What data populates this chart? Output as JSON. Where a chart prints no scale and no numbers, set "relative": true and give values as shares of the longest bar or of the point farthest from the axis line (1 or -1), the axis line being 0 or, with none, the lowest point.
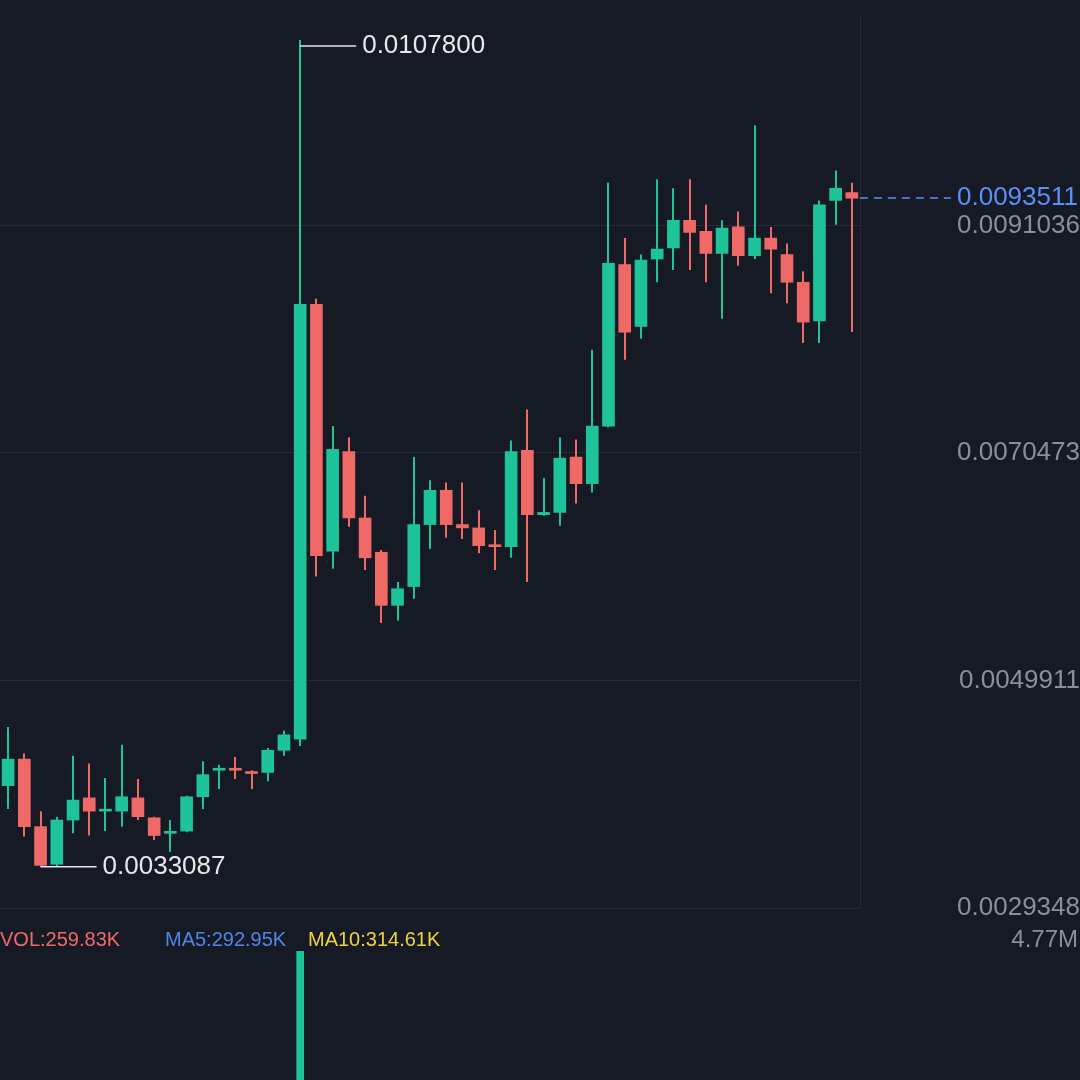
{
  "chart_data": [
    {
      "type": "candlestick",
      "categories": [
        null,
        null,
        null,
        null,
        null,
        null,
        null,
        null,
        null,
        null,
        null,
        null,
        null,
        null,
        null,
        null,
        null,
        null,
        null,
        null,
        null,
        null,
        null,
        null,
        null,
        null,
        null,
        null,
        null,
        null,
        null,
        null,
        null,
        null,
        null,
        null,
        null,
        null,
        null,
        null,
        null,
        null,
        null,
        null,
        null,
        null,
        null,
        null,
        null,
        null,
        null,
        null,
        null
      ],
      "ohlc": [
        [
          0.00404,
          0.00457,
          0.00383,
          0.00428
        ],
        [
          0.00428,
          0.00433,
          0.00358,
          0.00367
        ],
        [
          0.00367,
          0.00381,
          0.0033087,
          0.00332
        ],
        [
          0.00333,
          0.00376,
          0.00331,
          0.00373
        ],
        [
          0.00373,
          0.00431,
          0.00361,
          0.00391
        ],
        [
          0.00393,
          0.00424,
          0.00359,
          0.00381
        ],
        [
          0.00381,
          0.00411,
          0.00363,
          0.00382
        ],
        [
          0.00381,
          0.00441,
          0.00367,
          0.00394
        ],
        [
          0.00393,
          0.0041,
          0.00373,
          0.00376
        ],
        [
          0.00375,
          0.00376,
          0.00355,
          0.00359
        ],
        [
          0.00361,
          0.00373,
          0.00344,
          0.00362
        ],
        [
          0.00363,
          0.00395,
          0.00362,
          0.00394
        ],
        [
          0.00394,
          0.00426,
          0.00383,
          0.00414
        ],
        [
          0.00418,
          0.00423,
          0.00401,
          0.00419
        ],
        [
          0.00419,
          0.0043,
          0.0041,
          0.00418
        ],
        [
          0.00416,
          0.00418,
          0.00401,
          0.00415
        ],
        [
          0.00416,
          0.00438,
          0.00408,
          0.00436
        ],
        [
          0.00436,
          0.00454,
          0.00431,
          0.0045
        ],
        [
          0.00446,
          0.01078,
          0.0044,
          0.00839
        ],
        [
          0.00839,
          0.00844,
          0.00593,
          0.00612
        ],
        [
          0.00616,
          0.00729,
          0.006,
          0.00708
        ],
        [
          0.00706,
          0.00719,
          0.00638,
          0.00646
        ],
        [
          0.00646,
          0.00666,
          0.00599,
          0.0061
        ],
        [
          0.00615,
          0.00617,
          0.00551,
          0.00567
        ],
        [
          0.00567,
          0.00588,
          0.00553,
          0.00582
        ],
        [
          0.00584,
          0.00701,
          0.00573,
          0.0064
        ],
        [
          0.0064,
          0.0068,
          0.00618,
          0.00671
        ],
        [
          0.00671,
          0.00678,
          0.00628,
          0.0064
        ],
        [
          0.0064,
          0.00678,
          0.00627,
          0.00637
        ],
        [
          0.00637,
          0.00653,
          0.00614,
          0.00621
        ],
        [
          0.00621,
          0.00635,
          0.00599,
          0.0062
        ],
        [
          0.0062,
          0.00716,
          0.0061,
          0.00706
        ],
        [
          0.00707,
          0.00744,
          0.00588,
          0.00649
        ],
        [
          0.00649,
          0.00682,
          0.00648,
          0.00651
        ],
        [
          0.00651,
          0.00719,
          0.00639,
          0.007
        ],
        [
          0.00701,
          0.00717,
          0.00659,
          0.00677
        ],
        [
          0.00677,
          0.00798,
          0.00669,
          0.00729
        ],
        [
          0.00729,
          0.00949,
          0.00728,
          0.00876
        ],
        [
          0.00875,
          0.00899,
          0.00789,
          0.00814
        ],
        [
          0.00819,
          0.00884,
          0.00808,
          0.00879
        ],
        [
          0.0088,
          0.00952,
          0.00859,
          0.00889
        ],
        [
          0.0089,
          0.00944,
          0.0087,
          0.00915
        ],
        [
          0.00915,
          0.00952,
          0.0087,
          0.00904
        ],
        [
          0.00905,
          0.00929,
          0.00859,
          0.00885
        ],
        [
          0.00885,
          0.00915,
          0.00826,
          0.00908
        ],
        [
          0.00909,
          0.00923,
          0.00874,
          0.00883
        ],
        [
          0.00883,
          0.01001,
          0.0088,
          0.00899
        ],
        [
          0.00899,
          0.00909,
          0.00849,
          0.00889
        ],
        [
          0.00884,
          0.00894,
          0.0084,
          0.00859
        ],
        [
          0.00859,
          0.00869,
          0.00804,
          0.00823
        ],
        [
          0.00824,
          0.00933,
          0.00804,
          0.00929
        ],
        [
          0.00933,
          0.0096,
          0.00911,
          0.00944
        ],
        [
          0.0094,
          0.00949,
          0.00814,
          0.0093511
        ]
      ],
      "colors": [
        "#1ec39a",
        "#ef6a66",
        "#ef6a66",
        "#1ec39a",
        "#1ec39a",
        "#ef6a66",
        "#1ec39a",
        "#1ec39a",
        "#ef6a66",
        "#ef6a66",
        "#1ec39a",
        "#1ec39a",
        "#1ec39a",
        "#1ec39a",
        "#ef6a66",
        "#ef6a66",
        "#1ec39a",
        "#1ec39a",
        "#1ec39a",
        "#ef6a66",
        "#1ec39a",
        "#ef6a66",
        "#ef6a66",
        "#ef6a66",
        "#1ec39a",
        "#1ec39a",
        "#1ec39a",
        "#ef6a66",
        "#ef6a66",
        "#ef6a66",
        "#ef6a66",
        "#1ec39a",
        "#ef6a66",
        "#1ec39a",
        "#1ec39a",
        "#ef6a66",
        "#1ec39a",
        "#1ec39a",
        "#ef6a66",
        "#1ec39a",
        "#1ec39a",
        "#1ec39a",
        "#ef6a66",
        "#ef6a66",
        "#1ec39a",
        "#ef6a66",
        "#1ec39a",
        "#ef6a66",
        "#ef6a66",
        "#ef6a66",
        "#1ec39a",
        "#1ec39a",
        "#ef6a66"
      ],
      "ylim": [
        0.0029348,
        0.011
      ],
      "yticks": [
        0.0029348,
        0.0049911,
        0.0070473,
        0.0091036
      ],
      "grid": "y",
      "legend": false,
      "tick_labels": "y",
      "ref_lines": [
        {
          "axis": "y",
          "value": 0.0093511,
          "label": "0.0093511",
          "color": "#5b8ff9",
          "line_style": "dashed"
        }
      ],
      "annotations": [
        "0.0107800",
        "0.0033087"
      ]
    },
    {
      "type": "bar",
      "relative": true,
      "categories": [
        null,
        null,
        null,
        null,
        null,
        null,
        null,
        null,
        null,
        null,
        null,
        null,
        null,
        null,
        null,
        null,
        null,
        null,
        null,
        null,
        null,
        null,
        null,
        null,
        null,
        null,
        null,
        null,
        null,
        null,
        null,
        null,
        null,
        null,
        null,
        null,
        null,
        null,
        null,
        null,
        null,
        null,
        null,
        null,
        null,
        null,
        null,
        null,
        null,
        null,
        null,
        null,
        null
      ],
      "values": [
        null,
        null,
        null,
        null,
        null,
        null,
        null,
        null,
        null,
        null,
        null,
        null,
        null,
        null,
        null,
        null,
        null,
        null,
        1,
        null,
        null,
        null,
        null,
        null,
        null,
        null,
        null,
        null,
        null,
        null,
        null,
        null,
        null,
        null,
        null,
        null,
        null,
        null,
        null,
        null,
        null,
        null,
        null,
        null,
        null,
        null,
        null,
        null,
        null,
        null,
        null,
        null,
        null
      ],
      "color": "#1ec39a",
      "legend": false,
      "tick_labels": false,
      "annotations": [
        "VOL:259.83K",
        "MA5:292.95K",
        "MA10:314.61K",
        "4.77M"
      ]
    }
  ]
}
